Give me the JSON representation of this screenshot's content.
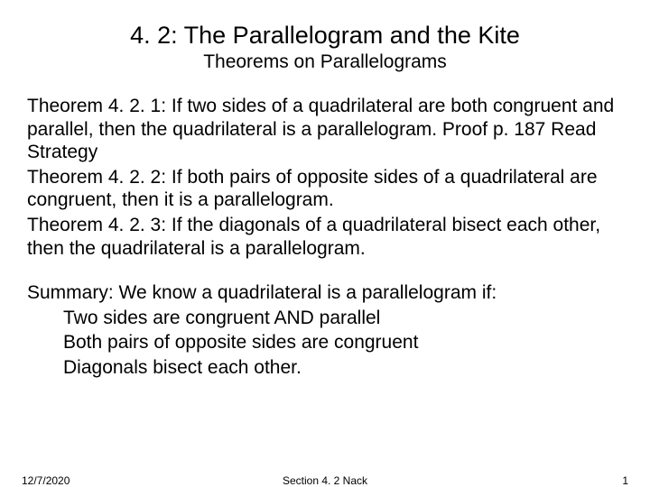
{
  "title": "4. 2:  The Parallelogram and the Kite",
  "subtitle": "Theorems on Parallelograms",
  "theorems": {
    "t1": "Theorem 4. 2. 1:  If two sides of a quadrilateral are both congruent and parallel, then the quadrilateral is a parallelogram. Proof p. 187 Read Strategy",
    "t2": "Theorem 4. 2. 2:  If both pairs of opposite sides of a quadrilateral are congruent, then it is a parallelogram.",
    "t3": "Theorem 4. 2. 3:  If the diagonals of a quadrilateral bisect each other, then the quadrilateral is a parallelogram."
  },
  "summary": {
    "intro": "Summary:  We know a quadrilateral is a parallelogram if:",
    "items": [
      "Two sides are congruent AND parallel",
      "Both pairs of opposite sides are congruent",
      "Diagonals bisect each other."
    ]
  },
  "footer": {
    "date": "12/7/2020",
    "center": "Section 4. 2 Nack",
    "page": "1"
  },
  "style": {
    "background_color": "#ffffff",
    "text_color": "#000000",
    "title_fontsize": 27,
    "subtitle_fontsize": 21,
    "body_fontsize": 21,
    "footer_fontsize": 12,
    "font_family": "Arial"
  }
}
